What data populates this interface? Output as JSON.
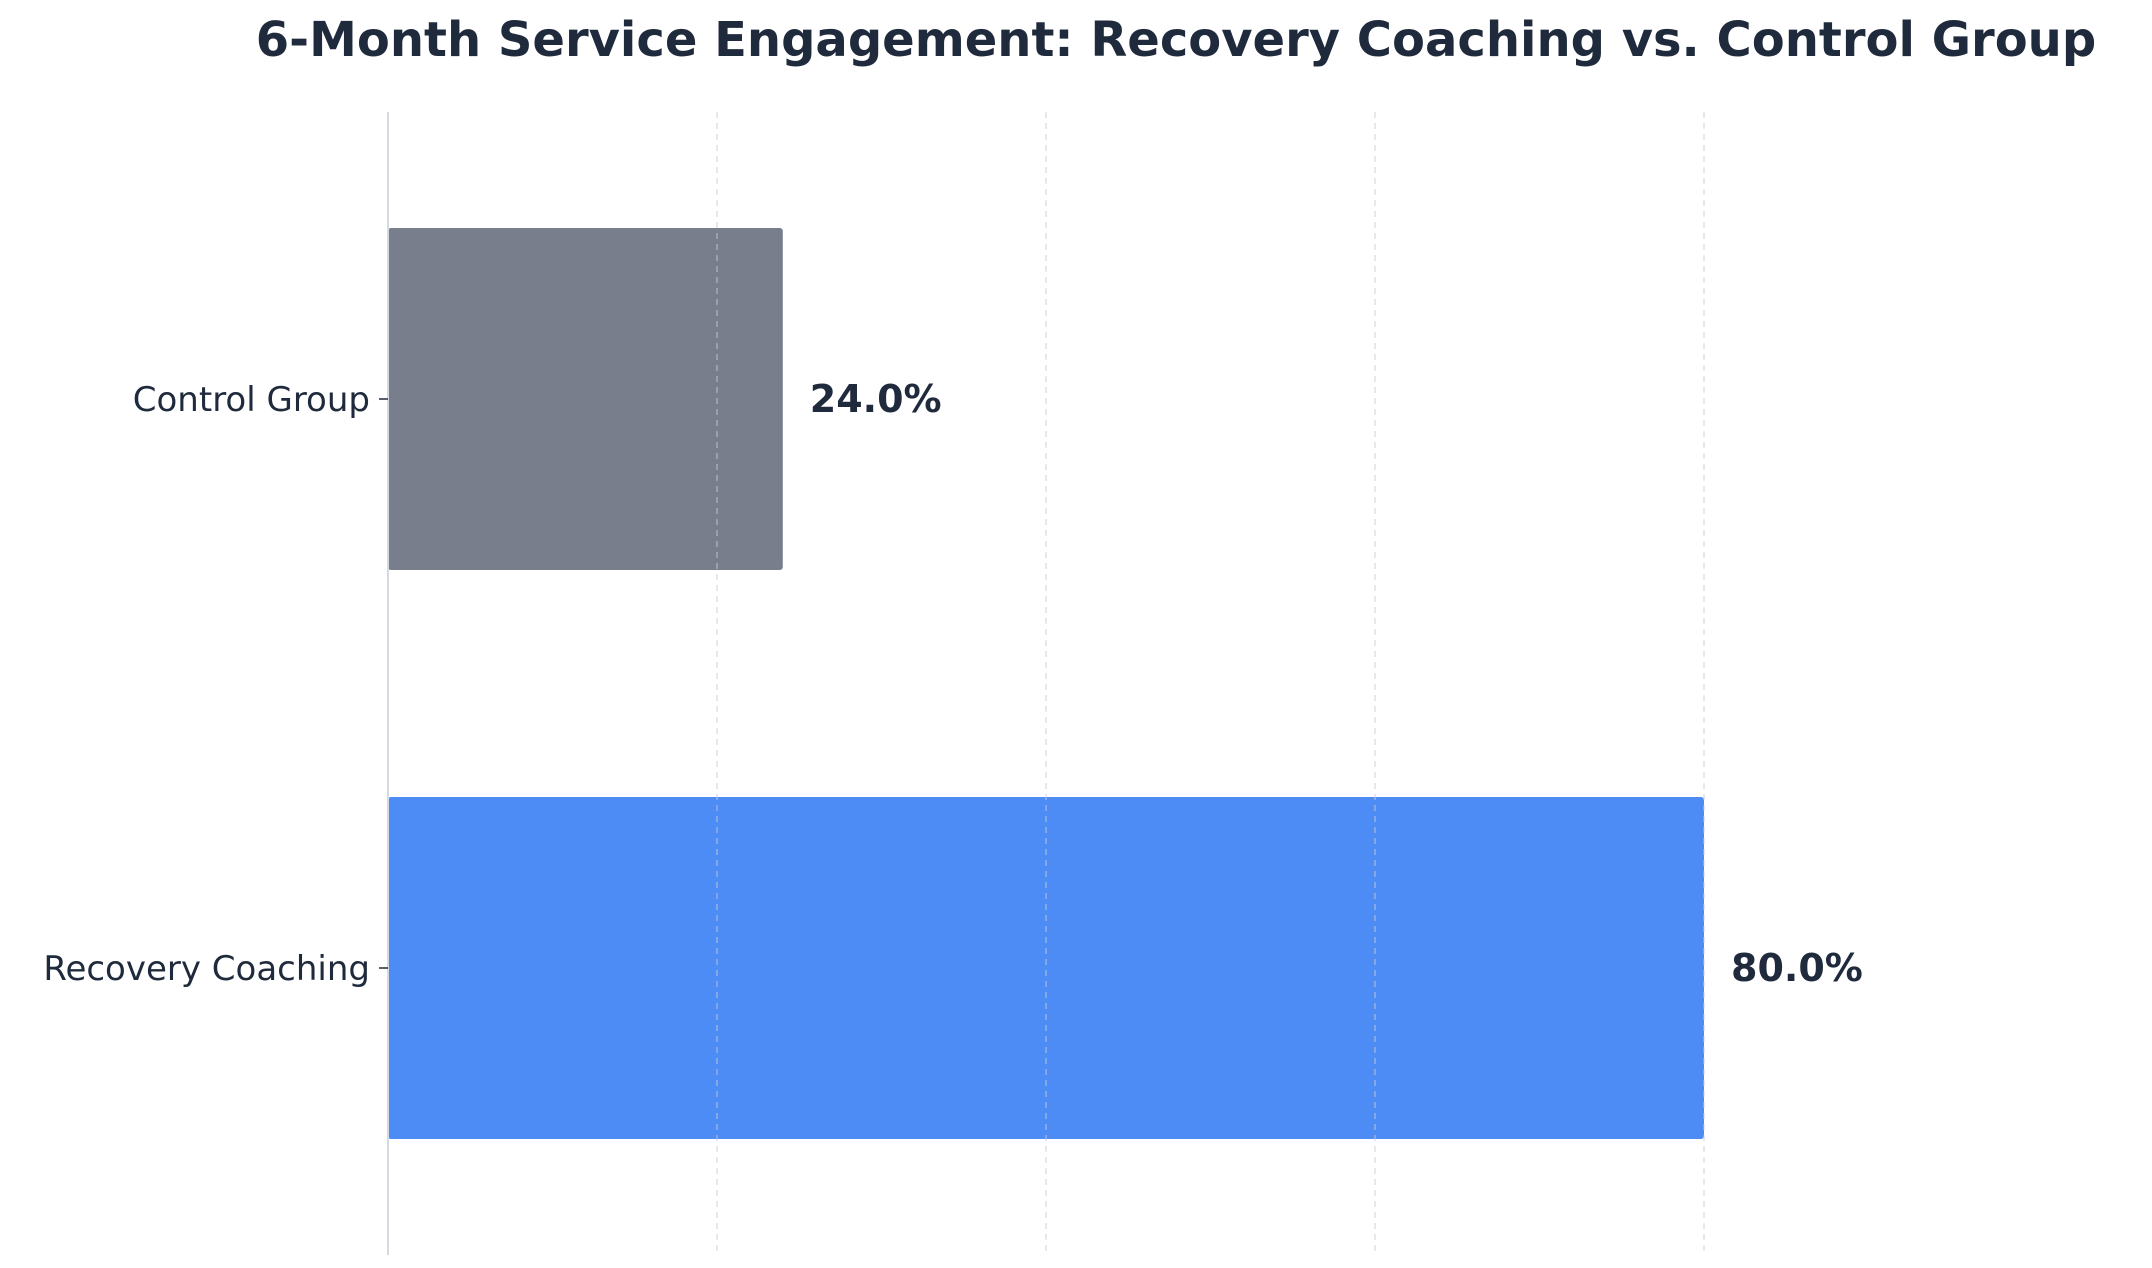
{
  "chart_data": {
    "type": "bar",
    "orientation": "horizontal",
    "title": "6-Month Service Engagement: Recovery Coaching vs. Control Group",
    "xlabel": "",
    "ylabel": "",
    "categories": [
      "Control Group",
      "Recovery Coaching"
    ],
    "values": [
      24.0,
      80.0
    ],
    "value_labels": [
      "24.0%",
      "80.0%"
    ],
    "colors": [
      "#787e8c",
      "#4d8cf5"
    ],
    "xlim": [
      0,
      100
    ],
    "x_ticks_hidden": true,
    "x_gridlines": [
      20,
      40,
      60,
      80
    ],
    "grid": "vertical-dashed",
    "legend": "none"
  }
}
